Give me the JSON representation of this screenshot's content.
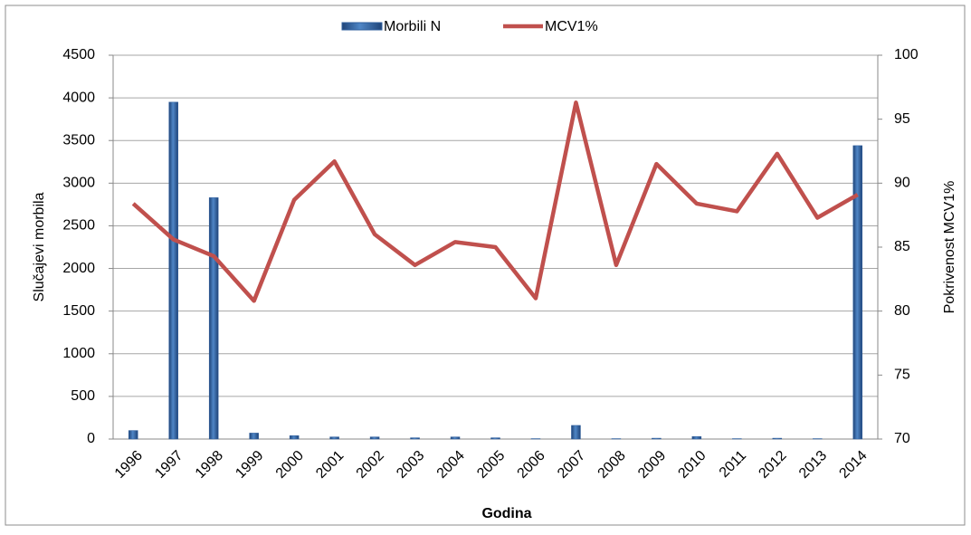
{
  "chart_data": {
    "type": "combo",
    "x_label": "Godina",
    "y_label": "Slučajevi morbila",
    "y2_label": "Pokrivenost MCV1%",
    "categories": [
      "1996",
      "1997",
      "1998",
      "1999",
      "2000",
      "2001",
      "2002",
      "2003",
      "2004",
      "2005",
      "2006",
      "2007",
      "2008",
      "2009",
      "2010",
      "2011",
      "2012",
      "2013",
      "2014"
    ],
    "series": [
      {
        "name": "Morbili N",
        "type": "bar",
        "color": "#2f5f9e",
        "axis": "y",
        "values": [
          100,
          3950,
          2830,
          70,
          40,
          25,
          25,
          15,
          25,
          15,
          5,
          160,
          5,
          10,
          30,
          5,
          10,
          5,
          3440
        ]
      },
      {
        "name": "MCV1%",
        "type": "line",
        "color": "#c0504d",
        "axis": "y2",
        "values": [
          88.4,
          85.6,
          84.3,
          80.8,
          88.7,
          91.7,
          86,
          83.6,
          85.4,
          85,
          81,
          96.3,
          83.6,
          91.5,
          88.4,
          87.8,
          92.3,
          87.3,
          89.1
        ]
      }
    ],
    "ylim": [
      0,
      4500
    ],
    "yticks": [
      0,
      500,
      1000,
      1500,
      2000,
      2500,
      3000,
      3500,
      4000,
      4500
    ],
    "y2lim": [
      70,
      100
    ],
    "y2ticks": [
      70,
      75,
      80,
      85,
      90,
      95,
      100
    ],
    "grid": true,
    "legend": "top"
  }
}
